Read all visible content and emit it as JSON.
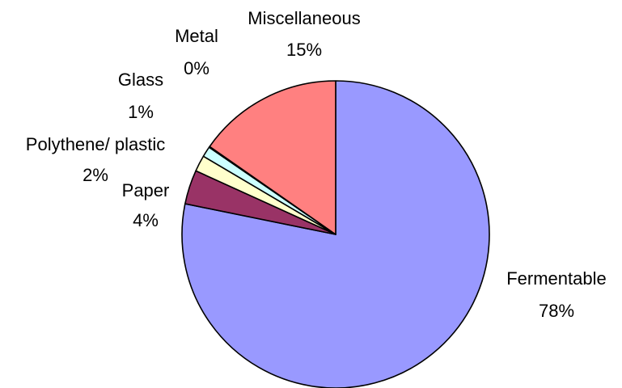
{
  "chart_data": {
    "type": "pie",
    "title": "",
    "legend": "none",
    "start_angle_deg": 0,
    "direction": "clockwise",
    "slices": [
      {
        "name": "Fermentable",
        "value": 78.2,
        "display_name": "Fermentable",
        "display_value": "78%",
        "color": "#9999FF"
      },
      {
        "name": "Paper",
        "value": 3.6,
        "display_name": "Paper",
        "display_value": "4%",
        "color": "#993366"
      },
      {
        "name": "Polythene/ plastic",
        "value": 1.7,
        "display_name": "Polythene/ plastic",
        "display_value": "2%",
        "color": "#FFFFCC"
      },
      {
        "name": "Glass",
        "value": 1.1,
        "display_name": "Glass",
        "display_value": "1%",
        "color": "#CCFFFF"
      },
      {
        "name": "Metal",
        "value": 0.1,
        "display_name": "Metal",
        "display_value": "0%",
        "color": "#660066"
      },
      {
        "name": "Miscellaneous",
        "value": 15.3,
        "display_name": "Miscellaneous",
        "display_value": "15%",
        "color": "#FF8080"
      }
    ]
  }
}
